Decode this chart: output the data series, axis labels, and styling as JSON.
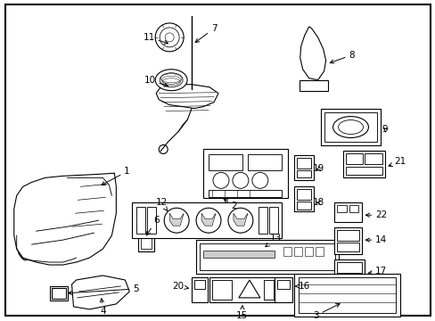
{
  "background_color": "#ffffff",
  "border_color": "#000000",
  "line_color": "#000000",
  "text_color": "#000000",
  "fig_width": 4.89,
  "fig_height": 3.6,
  "dpi": 100
}
